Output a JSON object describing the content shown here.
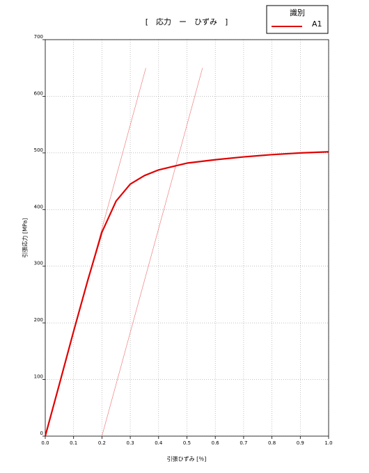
{
  "chart_data": {
    "type": "line",
    "title": "[　応力　ー　ひずみ　]",
    "x_label": "引張ひずみ [％]",
    "y_label": "引張応力 [MPa]",
    "legend_title": "識別",
    "x": [
      0,
      0.05,
      0.1,
      0.15,
      0.2,
      0.25,
      0.3,
      0.35,
      0.4,
      0.5,
      0.6,
      0.7,
      0.8,
      0.9,
      1.0
    ],
    "series": [
      {
        "name": "A1",
        "color": "#e00000",
        "values": [
          0,
          92,
          185,
          275,
          360,
          415,
          445,
          460,
          470,
          482,
          488,
          493,
          497,
          500,
          502
        ]
      }
    ],
    "reference_lines": [
      {
        "color": "#f08080",
        "x": [
          0,
          0.355
        ],
        "values": [
          0,
          650
        ]
      },
      {
        "color": "#f08080",
        "x": [
          0.2,
          0.555
        ],
        "values": [
          0,
          650
        ]
      }
    ],
    "xlim": [
      0,
      1.0
    ],
    "ylim": [
      0,
      700
    ],
    "xticks": [
      {
        "value": 0,
        "label": "0.0"
      },
      0.1,
      0.2,
      0.3,
      0.4,
      0.5,
      0.6,
      0.7,
      0.8,
      0.9,
      {
        "value": 1.0,
        "label": "1.0"
      }
    ],
    "yticks": [
      0,
      100,
      200,
      300,
      400,
      500,
      600,
      700
    ],
    "grid": true,
    "legend": "upper right"
  }
}
